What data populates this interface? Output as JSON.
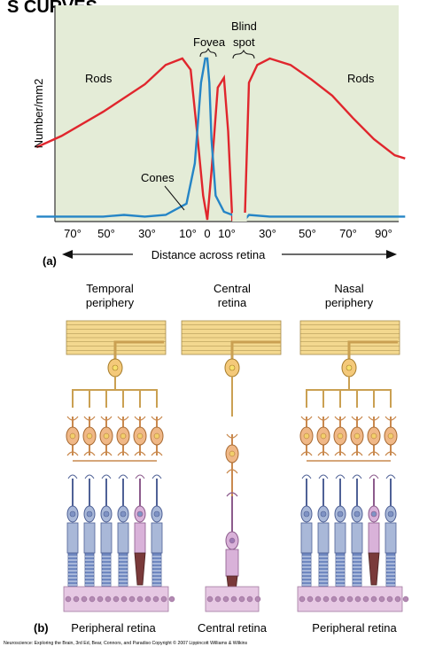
{
  "header": {
    "title_fragment": "S CURVES"
  },
  "panel_a": {
    "label": "(a)",
    "ylabel": "Number/mm2",
    "annotations": {
      "fovea": "Fovea",
      "blind_spot_line1": "Blind",
      "blind_spot_line2": "spot",
      "rods_left": "Rods",
      "rods_right": "Rods",
      "cones": "Cones"
    },
    "ticks": [
      "70°",
      "50°",
      "30°",
      "10°",
      "0",
      "10°",
      "30°",
      "50°",
      "70°",
      "90°"
    ],
    "axis_caption": "Distance across retina",
    "colors": {
      "rods": "#e0262d",
      "cones": "#2585c6",
      "plot_bg": "#e4ecd7"
    }
  },
  "chart_data": {
    "type": "line",
    "xlabel": "Distance across retina",
    "ylabel": "Number/mm2",
    "x_ticks": [
      "70°",
      "50°",
      "30°",
      "10°",
      "0",
      "10°",
      "30°",
      "50°",
      "70°",
      "90°"
    ],
    "series": [
      {
        "name": "Rods",
        "x": [
          -82,
          -70,
          -50,
          -30,
          -20,
          -12,
          -8,
          -5,
          -2,
          0,
          2,
          5,
          8,
          10,
          12,
          14,
          18,
          20,
          24,
          30,
          40,
          50,
          60,
          70,
          80,
          90,
          95
        ],
        "y": [
          0.45,
          0.52,
          0.67,
          0.84,
          0.96,
          1.0,
          0.93,
          0.55,
          0.15,
          0.0,
          0.3,
          0.82,
          0.88,
          0.55,
          0.0,
          0.0,
          0.0,
          0.85,
          0.96,
          1.0,
          0.96,
          0.87,
          0.77,
          0.63,
          0.5,
          0.4,
          0.38
        ]
      },
      {
        "name": "Cones",
        "x": [
          -82,
          -70,
          -50,
          -40,
          -30,
          -20,
          -10,
          -6,
          -3,
          -1,
          0,
          1,
          2,
          4,
          8,
          12,
          14,
          18,
          20,
          30,
          50,
          70,
          95
        ],
        "y": [
          0.02,
          0.02,
          0.02,
          0.03,
          0.02,
          0.03,
          0.1,
          0.35,
          0.85,
          1.0,
          1.0,
          0.85,
          0.5,
          0.15,
          0.05,
          0.03,
          0.0,
          0.0,
          0.03,
          0.02,
          0.02,
          0.02,
          0.02
        ]
      }
    ]
  },
  "panel_b": {
    "label": "(b)",
    "columns": [
      {
        "title_line1": "Temporal",
        "title_line2": "periphery",
        "caption": "Peripheral retina"
      },
      {
        "title_line1": "Central",
        "title_line2": "retina",
        "caption": "Central retina"
      },
      {
        "title_line1": "Nasal",
        "title_line2": "periphery",
        "caption": "Peripheral retina"
      }
    ],
    "colors": {
      "ganglion": "#f4c97a",
      "bipolar": "#f0b887",
      "rod": "#a9b8d8",
      "cone": "#d9b2d9",
      "bar": "#f3d88f"
    }
  },
  "footer": {
    "credit": "Neuroscience: Exploring the Brain, 3rd Ed, Bear, Connors, and Paradiso Copyright © 2007 Lippincott Williams & Wilkins"
  }
}
